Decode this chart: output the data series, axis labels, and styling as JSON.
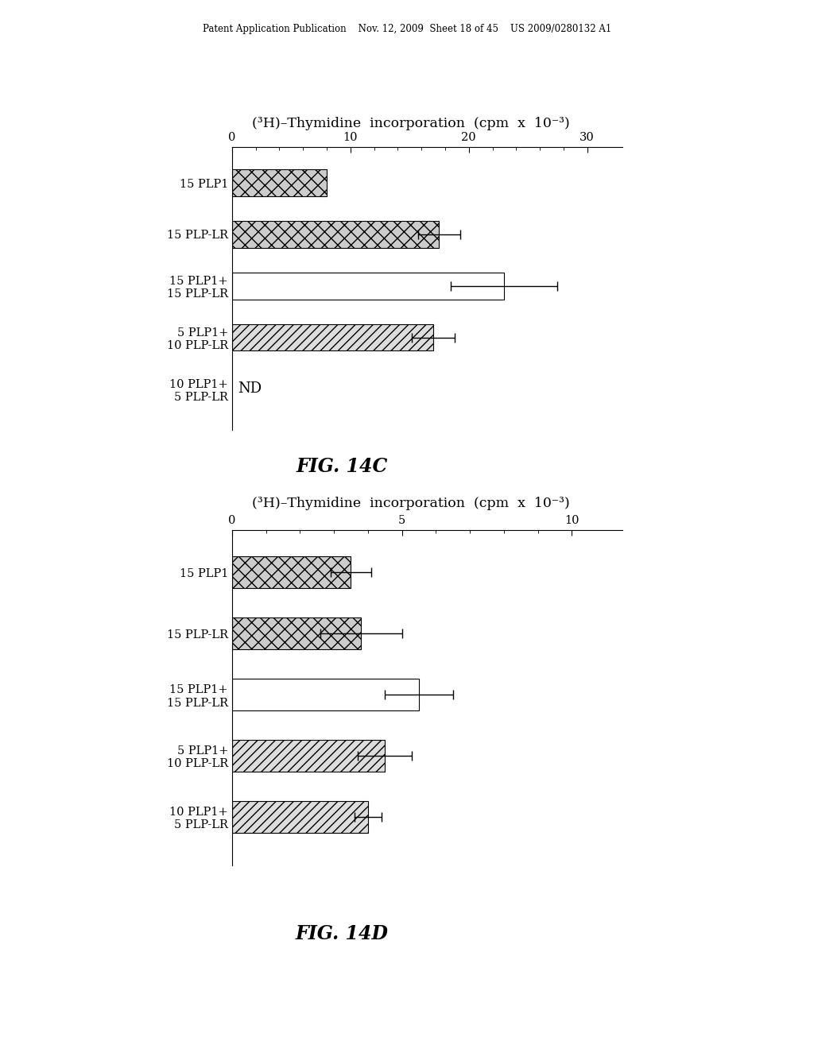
{
  "header_text": "Patent Application Publication    Nov. 12, 2009  Sheet 18 of 45    US 2009/0280132 A1",
  "chart_c": {
    "title": "(³H)–Thymidine  incorporation  (cpm  x  10⁻³)",
    "fig_label": "FIG. 14C",
    "xlim": [
      0,
      33
    ],
    "xticks": [
      0,
      10,
      20,
      30
    ],
    "minor_tick_step": 2,
    "labels": [
      "15 PLP1",
      "15 PLP-LR",
      "15 PLP1+\n15 PLP-LR",
      "5 PLP1+\n10 PLP-LR",
      "10 PLP1+\n5 PLP-LR"
    ],
    "values": [
      8.0,
      17.5,
      23.0,
      17.0,
      0
    ],
    "errors": [
      0,
      1.8,
      4.5,
      1.8,
      0
    ],
    "patterns": [
      "cross",
      "cross",
      "white",
      "diagonal",
      "nd"
    ],
    "nd_label": "ND"
  },
  "chart_d": {
    "title": "(³H)–Thymidine  incorporation  (cpm  x  10⁻³)",
    "fig_label": "FIG. 14D",
    "xlim": [
      0,
      11.5
    ],
    "xticks": [
      0,
      5,
      10
    ],
    "minor_tick_step": 1,
    "labels": [
      "15 PLP1",
      "15 PLP-LR",
      "15 PLP1+\n15 PLP-LR",
      "5 PLP1+\n10 PLP-LR",
      "10 PLP1+\n5 PLP-LR"
    ],
    "values": [
      3.5,
      3.8,
      5.5,
      4.5,
      4.0
    ],
    "errors": [
      0.6,
      1.2,
      1.0,
      0.8,
      0.4
    ],
    "patterns": [
      "cross",
      "cross",
      "white",
      "diagonal",
      "diagonal"
    ],
    "nd_label": null
  },
  "bg_color": "#ffffff",
  "bar_height": 0.52,
  "text_color": "#000000"
}
